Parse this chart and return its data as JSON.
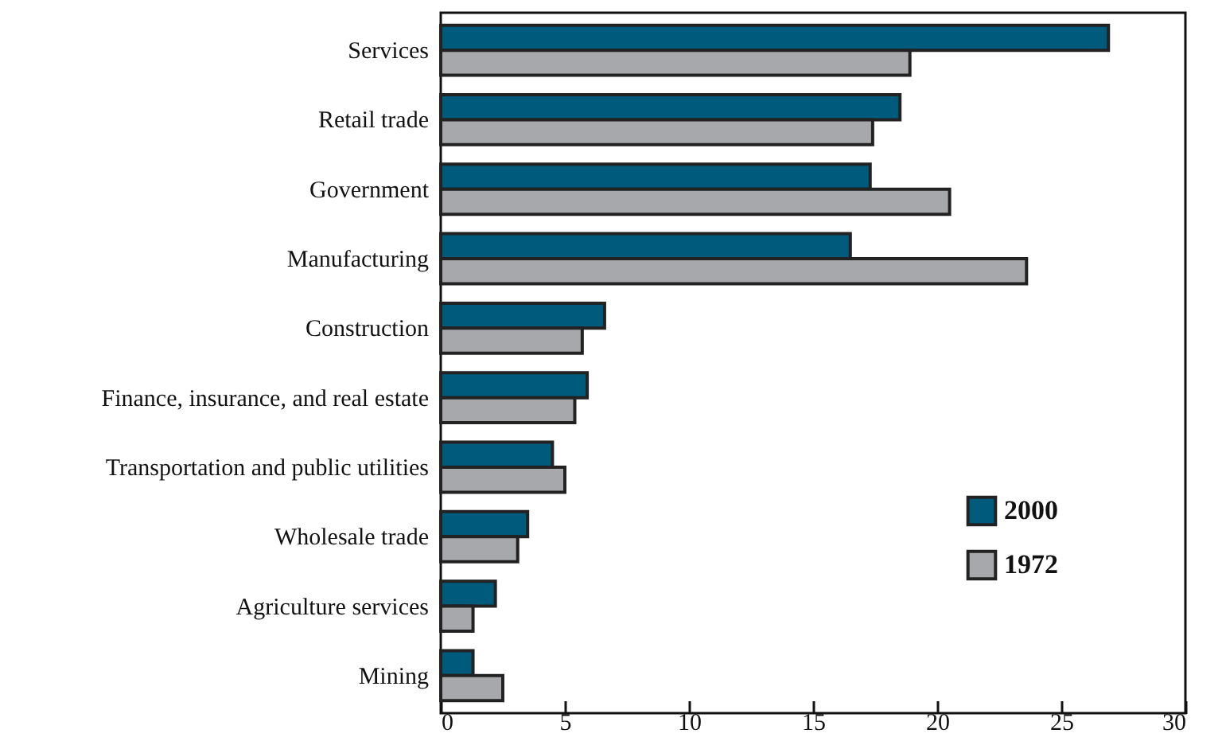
{
  "chart_data": {
    "type": "bar",
    "orientation": "horizontal",
    "categories": [
      "Services",
      "Retail trade",
      "Government",
      "Manufacturing",
      "Construction",
      "Finance, insurance, and real estate",
      "Transportation and public utilities",
      "Wholesale trade",
      "Agriculture services",
      "Mining"
    ],
    "series": [
      {
        "name": "2000",
        "color": "#005a7c",
        "values": [
          26.9,
          18.5,
          17.3,
          16.5,
          6.6,
          5.9,
          4.5,
          3.5,
          2.2,
          1.3
        ]
      },
      {
        "name": "1972",
        "color": "#a7a8ab",
        "values": [
          18.9,
          17.4,
          20.5,
          23.6,
          5.7,
          5.4,
          5.0,
          3.1,
          1.3,
          2.5
        ]
      }
    ],
    "xlim": [
      0,
      30
    ],
    "xticks": [
      0,
      5,
      10,
      15,
      20,
      25,
      30
    ],
    "grid": false,
    "legend": "bottom right"
  }
}
